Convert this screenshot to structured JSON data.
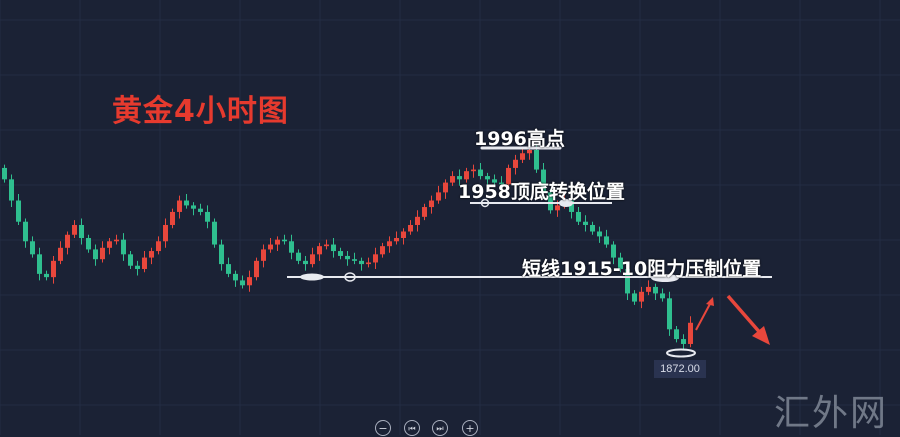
{
  "chart_data": {
    "type": "candlestick",
    "title": "黄金4小时图",
    "closes": [
      1978,
      1965,
      1952,
      1940,
      1932,
      1920,
      1918,
      1928,
      1936,
      1944,
      1950,
      1942,
      1935,
      1929,
      1936,
      1940,
      1941,
      1932,
      1925,
      1923,
      1930,
      1934,
      1940,
      1950,
      1958,
      1965,
      1962,
      1960,
      1958,
      1952,
      1938,
      1926,
      1920,
      1916,
      1913,
      1918,
      1928,
      1935,
      1938,
      1941,
      1940,
      1933,
      1928,
      1926,
      1932,
      1937,
      1938,
      1934,
      1931,
      1929,
      1928,
      1926,
      1927,
      1932,
      1937,
      1940,
      1942,
      1946,
      1950,
      1955,
      1961,
      1965,
      1970,
      1976,
      1980,
      1978,
      1983,
      1984,
      1980,
      1978,
      1976,
      1975,
      1985,
      1990,
      1994,
      1996,
      1984,
      1970,
      1959,
      1962,
      1965,
      1958,
      1952,
      1950,
      1946,
      1943,
      1938,
      1930,
      1923,
      1908,
      1903,
      1909,
      1912,
      1908,
      1905,
      1886,
      1880,
      1877,
      1890
    ],
    "first_open": 1985,
    "annotations": [
      {
        "text": "1996高点",
        "price": 1996
      },
      {
        "text": "1958顶底转换位置",
        "price": 1958
      },
      {
        "text": "短线1915-10阻力压制位置",
        "price": 1915
      }
    ],
    "low_marker": {
      "price": 1872,
      "label": "1872.00"
    },
    "colors": {
      "up": "#e8473c",
      "down": "#2fbf8f",
      "title": "#e63a2e",
      "background": "#1b2235"
    }
  },
  "watermark": "汇外网",
  "controls": [
    {
      "name": "zoom-out-button",
      "icon": "minus-icon",
      "glyph": "−"
    },
    {
      "name": "scroll-left-button",
      "icon": "skip-back-icon",
      "glyph": "⏮"
    },
    {
      "name": "scroll-right-button",
      "icon": "skip-forward-icon",
      "glyph": "⏭"
    },
    {
      "name": "zoom-in-button",
      "icon": "plus-icon",
      "glyph": "+"
    }
  ]
}
